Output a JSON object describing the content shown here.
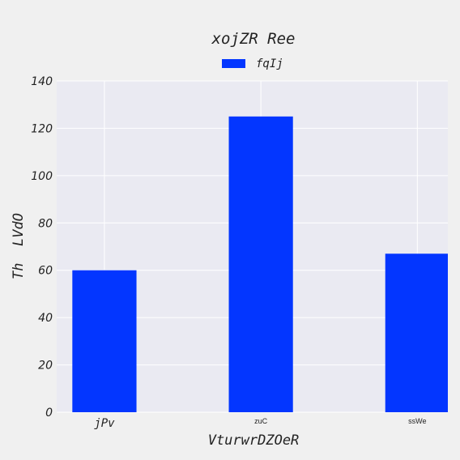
{
  "chart_data": {
    "type": "bar",
    "title": "xojZR Ree",
    "xlabel": "VturwrDZOeR",
    "ylabel": "Th  LVdO",
    "categories": [
      "jPv",
      "zuC",
      "ssWe"
    ],
    "series": [
      {
        "name": "fqIj",
        "values": [
          60,
          125,
          67
        ],
        "color": "#0336ff"
      }
    ],
    "ylim": [
      0,
      140
    ],
    "yticks": [
      0,
      20,
      40,
      60,
      80,
      100,
      120,
      140
    ],
    "grid": true,
    "legend_position": "top-center",
    "background_color": "#eaeaf2",
    "page_background": "#f0f0f0"
  }
}
